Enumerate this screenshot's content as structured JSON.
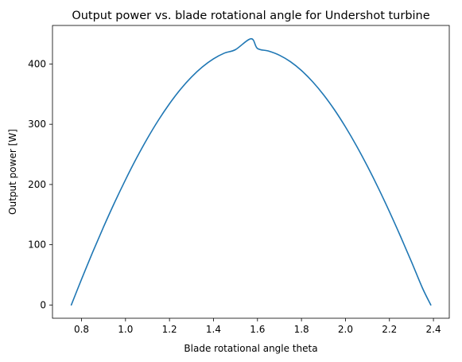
{
  "chart_data": {
    "type": "line",
    "title": "Output power vs. blade rotational angle for Undershot turbine",
    "xlabel": "Blade rotational angle theta",
    "ylabel": "Output power [W]",
    "xlim": [
      0.668,
      2.472
    ],
    "ylim": [
      -22,
      464
    ],
    "x_ticks": [
      0.8,
      1.0,
      1.2,
      1.4,
      1.6,
      1.8,
      2.0,
      2.2,
      2.4
    ],
    "x_tick_labels": [
      "0.8",
      "1.0",
      "1.2",
      "1.4",
      "1.6",
      "1.8",
      "2.0",
      "2.2",
      "2.4"
    ],
    "y_ticks": [
      0,
      100,
      200,
      300,
      400
    ],
    "y_tick_labels": [
      "0",
      "100",
      "200",
      "300",
      "400"
    ],
    "grid": false,
    "series": [
      {
        "color": "#1f77b4",
        "x": [
          0.7535,
          0.8,
          0.85,
          0.9,
          0.95,
          1.0,
          1.05,
          1.1,
          1.15,
          1.2,
          1.25,
          1.3,
          1.35,
          1.4,
          1.45,
          1.5,
          1.5708,
          1.6,
          1.65,
          1.7,
          1.75,
          1.8,
          1.85,
          1.9,
          1.95,
          2.0,
          2.05,
          2.1,
          2.15,
          2.2,
          2.25,
          2.3,
          2.35,
          2.3881
        ],
        "y": [
          0,
          42.6,
          87.0,
          129.4,
          169.8,
          207.9,
          243.7,
          276.8,
          307.0,
          334.1,
          358.0,
          378.4,
          395.3,
          408.6,
          418.2,
          423.9,
          442,
          425.8,
          421.6,
          414.6,
          403.8,
          389.2,
          370.9,
          349.1,
          324.0,
          295.6,
          264.3,
          230.2,
          193.7,
          154.9,
          114.2,
          71.9,
          28.2,
          0
        ]
      }
    ]
  }
}
